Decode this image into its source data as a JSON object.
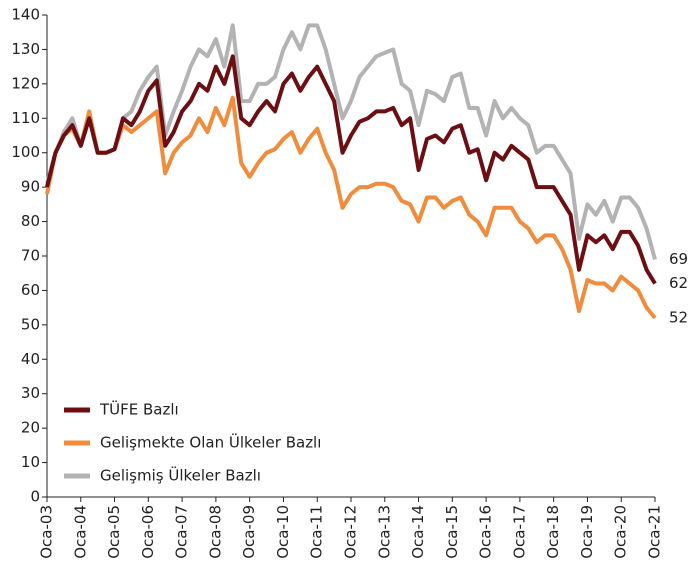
{
  "chart_data": {
    "type": "line",
    "categories": [
      "Oca-03",
      null,
      null,
      null,
      "Oca-04",
      null,
      null,
      null,
      "Oca-05",
      null,
      null,
      null,
      "Oca-06",
      null,
      null,
      null,
      "Oca-07",
      null,
      null,
      null,
      "Oca-08",
      null,
      null,
      null,
      "Oca-09",
      null,
      null,
      null,
      "Oca-10",
      null,
      null,
      null,
      "Oca-11",
      null,
      null,
      null,
      "Oca-12",
      null,
      null,
      null,
      "Oca-13",
      null,
      null,
      null,
      "Oca-14",
      null,
      null,
      null,
      "Oca-15",
      null,
      null,
      null,
      "Oca-16",
      null,
      null,
      null,
      "Oca-17",
      null,
      null,
      null,
      "Oca-18",
      null,
      null,
      null,
      "Oca-19",
      null,
      null,
      null,
      "Oca-20",
      null,
      null,
      null,
      "Oca-21"
    ],
    "series": [
      {
        "name": "TÜFE Bazlı",
        "color": "#6d0f12",
        "values": [
          90,
          100,
          105,
          108,
          102,
          110,
          100,
          100,
          101,
          110,
          108,
          112,
          118,
          121,
          102,
          106,
          112,
          115,
          120,
          118,
          125,
          120,
          128,
          110,
          108,
          112,
          115,
          112,
          120,
          123,
          118,
          122,
          125,
          120,
          115,
          100,
          105,
          109,
          110,
          112,
          112,
          113,
          108,
          110,
          95,
          104,
          105,
          103,
          107,
          108,
          100,
          101,
          92,
          100,
          98,
          102,
          100,
          98,
          90,
          90,
          90,
          86,
          82,
          66,
          76,
          74,
          76,
          72,
          77,
          77,
          73,
          66,
          62
        ]
      },
      {
        "name": "Gelişmekte Olan Ülkeler Bazlı",
        "color": "#f08c3c",
        "values": [
          88,
          100,
          105,
          107,
          102,
          112,
          100,
          100,
          101,
          108,
          106,
          108,
          110,
          112,
          94,
          100,
          103,
          105,
          110,
          106,
          113,
          108,
          116,
          97,
          93,
          97,
          100,
          101,
          104,
          106,
          100,
          104,
          107,
          100,
          95,
          84,
          88,
          90,
          90,
          91,
          91,
          90,
          86,
          85,
          80,
          87,
          87,
          84,
          86,
          87,
          82,
          80,
          76,
          84,
          84,
          84,
          80,
          78,
          74,
          76,
          76,
          72,
          66,
          54,
          63,
          62,
          62,
          60,
          64,
          62,
          60,
          55,
          52
        ]
      },
      {
        "name": "Gelişmiş Ülkeler Bazlı",
        "color": "#b3b3b3",
        "values": [
          91,
          100,
          106,
          110,
          102,
          110,
          100,
          100,
          101,
          110,
          112,
          118,
          122,
          125,
          105,
          112,
          118,
          125,
          130,
          128,
          133,
          125,
          137,
          115,
          115,
          120,
          120,
          122,
          130,
          135,
          130,
          137,
          137,
          130,
          120,
          110,
          115,
          122,
          125,
          128,
          129,
          130,
          120,
          118,
          108,
          118,
          117,
          115,
          122,
          123,
          113,
          113,
          105,
          115,
          110,
          113,
          110,
          108,
          100,
          102,
          102,
          98,
          94,
          75,
          85,
          82,
          86,
          80,
          87,
          87,
          84,
          78,
          69
        ]
      }
    ],
    "ylim": [
      0,
      140
    ],
    "yticks": [
      0,
      10,
      20,
      30,
      40,
      50,
      60,
      70,
      80,
      90,
      100,
      110,
      120,
      130,
      140
    ],
    "grid": false,
    "legend": "lower-left"
  }
}
